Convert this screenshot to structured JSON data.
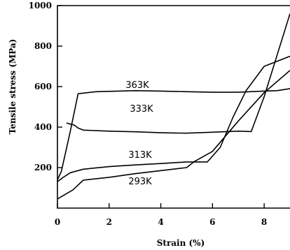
{
  "chart_data": {
    "type": "line",
    "xlabel": "Strain (%)",
    "ylabel": "Tensile stress (MPa)",
    "xlim": [
      0,
      9
    ],
    "ylim": [
      0,
      1000
    ],
    "xticks": [
      0,
      2,
      4,
      6,
      8
    ],
    "yticks": [
      200,
      400,
      600,
      800,
      1000
    ],
    "grid": false,
    "series": [
      {
        "name": "363K",
        "x": [
          0,
          0.15,
          0.5,
          0.8,
          1.5,
          3,
          4,
          5,
          6,
          7,
          8,
          8.5,
          9
        ],
        "y": [
          140,
          180,
          380,
          565,
          575,
          580,
          578,
          575,
          572,
          572,
          578,
          580,
          590
        ]
      },
      {
        "name": "333K",
        "x": [
          0.35,
          0.65,
          0.8,
          1.0,
          2,
          3,
          4,
          5,
          6,
          7,
          7.5,
          8,
          9
        ],
        "y": [
          420,
          410,
          395,
          385,
          380,
          377,
          372,
          370,
          375,
          380,
          378,
          550,
          960
        ]
      },
      {
        "name": "313K",
        "x": [
          0,
          0.2,
          0.5,
          1,
          2,
          3,
          4,
          5,
          5.8,
          6.3,
          6.8,
          7.3,
          8,
          9
        ],
        "y": [
          130,
          150,
          175,
          192,
          205,
          213,
          220,
          228,
          228,
          300,
          450,
          580,
          700,
          750
        ]
      },
      {
        "name": "293K",
        "x": [
          0,
          0.2,
          0.6,
          1.0,
          2,
          3,
          4,
          5.0,
          5.3,
          6,
          7,
          8,
          9
        ],
        "y": [
          45,
          60,
          90,
          138,
          152,
          170,
          185,
          200,
          230,
          280,
          430,
          570,
          680
        ]
      }
    ],
    "annotations": [
      "363K",
      "333K",
      "313K",
      "293K"
    ]
  }
}
